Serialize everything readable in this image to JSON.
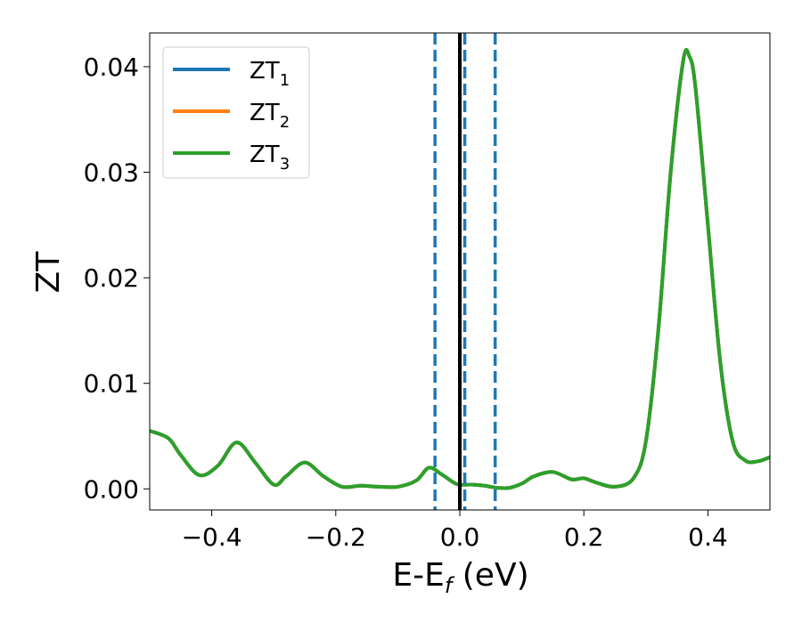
{
  "chart_data": {
    "type": "line",
    "xlabel": "E-E",
    "xlabel_sub": "f",
    "xlabel_unit": " (eV)",
    "ylabel": "ZT",
    "xlim": [
      -0.5,
      0.5
    ],
    "ylim": [
      -0.002,
      0.0432
    ],
    "xticks": [
      -0.4,
      -0.2,
      0.0,
      0.2,
      0.4
    ],
    "xtick_labels": [
      "−0.4",
      "−0.2",
      "0.0",
      "0.2",
      "0.4"
    ],
    "yticks": [
      0.0,
      0.01,
      0.02,
      0.03,
      0.04
    ],
    "ytick_labels": [
      "0.00",
      "0.01",
      "0.02",
      "0.03",
      "0.04"
    ],
    "legend_position": "top-left",
    "series": [
      {
        "name": "ZT",
        "subscript": "1",
        "color": "#1f77b4",
        "x": [
          -0.5,
          -0.47,
          -0.45,
          -0.42,
          -0.39,
          -0.36,
          -0.33,
          -0.3,
          -0.28,
          -0.25,
          -0.22,
          -0.19,
          -0.16,
          -0.13,
          -0.1,
          -0.07,
          -0.05,
          -0.03,
          -0.01,
          0.0,
          0.02,
          0.04,
          0.06,
          0.08,
          0.1,
          0.12,
          0.15,
          0.18,
          0.2,
          0.22,
          0.25,
          0.28,
          0.3,
          0.32,
          0.34,
          0.36,
          0.37,
          0.38,
          0.4,
          0.42,
          0.44,
          0.46,
          0.48,
          0.5
        ],
        "y": [
          0.0055,
          0.0048,
          0.0032,
          0.0013,
          0.0022,
          0.0044,
          0.0025,
          0.0004,
          0.0012,
          0.0025,
          0.0012,
          0.0002,
          0.0003,
          0.0002,
          0.0002,
          0.0008,
          0.002,
          0.0014,
          0.0006,
          0.0004,
          0.0004,
          0.0003,
          0.0001,
          0.0001,
          0.0005,
          0.0012,
          0.0016,
          0.0009,
          0.001,
          0.0006,
          0.0002,
          0.001,
          0.0045,
          0.015,
          0.03,
          0.0405,
          0.041,
          0.038,
          0.025,
          0.012,
          0.0045,
          0.0027,
          0.0026,
          0.003
        ]
      },
      {
        "name": "ZT",
        "subscript": "2",
        "color": "#ff7f0e",
        "x": [
          -0.5,
          -0.47,
          -0.45,
          -0.42,
          -0.39,
          -0.36,
          -0.33,
          -0.3,
          -0.28,
          -0.25,
          -0.22,
          -0.19,
          -0.16,
          -0.13,
          -0.1,
          -0.07,
          -0.05,
          -0.03,
          -0.01,
          0.0,
          0.02,
          0.04,
          0.06,
          0.08,
          0.1,
          0.12,
          0.15,
          0.18,
          0.2,
          0.22,
          0.25,
          0.28,
          0.3,
          0.32,
          0.34,
          0.36,
          0.37,
          0.38,
          0.4,
          0.42,
          0.44,
          0.46,
          0.48,
          0.5
        ],
        "y": [
          0.0055,
          0.0048,
          0.0032,
          0.0013,
          0.0022,
          0.0044,
          0.0025,
          0.0004,
          0.0012,
          0.0025,
          0.0012,
          0.0002,
          0.0003,
          0.0002,
          0.0002,
          0.0008,
          0.002,
          0.0014,
          0.0006,
          0.0004,
          0.0004,
          0.0003,
          0.0001,
          0.0001,
          0.0005,
          0.0012,
          0.0016,
          0.0009,
          0.001,
          0.0006,
          0.0002,
          0.001,
          0.0045,
          0.015,
          0.03,
          0.0405,
          0.041,
          0.038,
          0.025,
          0.012,
          0.0045,
          0.0027,
          0.0026,
          0.003
        ]
      },
      {
        "name": "ZT",
        "subscript": "3",
        "color": "#2ca02c",
        "x": [
          -0.5,
          -0.47,
          -0.45,
          -0.42,
          -0.39,
          -0.36,
          -0.33,
          -0.3,
          -0.28,
          -0.25,
          -0.22,
          -0.19,
          -0.16,
          -0.13,
          -0.1,
          -0.07,
          -0.05,
          -0.03,
          -0.01,
          0.0,
          0.02,
          0.04,
          0.06,
          0.08,
          0.1,
          0.12,
          0.15,
          0.18,
          0.2,
          0.22,
          0.25,
          0.28,
          0.3,
          0.32,
          0.34,
          0.36,
          0.37,
          0.38,
          0.4,
          0.42,
          0.44,
          0.46,
          0.48,
          0.5
        ],
        "y": [
          0.0055,
          0.0048,
          0.0032,
          0.0013,
          0.0022,
          0.0044,
          0.0025,
          0.0004,
          0.0012,
          0.0025,
          0.0012,
          0.0002,
          0.0003,
          0.0002,
          0.0002,
          0.0008,
          0.002,
          0.0014,
          0.0006,
          0.0004,
          0.0004,
          0.0003,
          0.0001,
          0.0001,
          0.0005,
          0.0012,
          0.0016,
          0.0009,
          0.001,
          0.0006,
          0.0002,
          0.001,
          0.0045,
          0.015,
          0.03,
          0.0405,
          0.041,
          0.038,
          0.025,
          0.012,
          0.0045,
          0.0027,
          0.0026,
          0.003
        ]
      }
    ],
    "vertical_lines": [
      {
        "x": 0.0,
        "style": "solid",
        "color": "#000000"
      },
      {
        "x": -0.04,
        "style": "dashed",
        "color": "#1f77b4"
      },
      {
        "x": 0.008,
        "style": "dashed",
        "color": "#1f77b4"
      },
      {
        "x": 0.057,
        "style": "dashed",
        "color": "#1f77b4"
      }
    ]
  }
}
